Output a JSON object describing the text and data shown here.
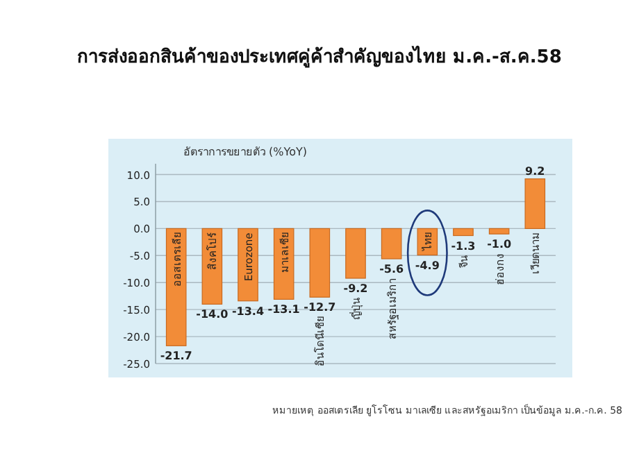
{
  "chart_data": {
    "type": "bar",
    "title": "การส่งออกสินค้าของประเทศคู่ค้าสำคัญของไทย ม.ค.-ส.ค.58",
    "subtitle": "อัตราการขยายตัว (%YoY)",
    "categories": [
      "ออสเตรเลีย",
      "สิงคโปร์",
      "Eurozone",
      "มาเลเซีย",
      "อินโดนีเซีย",
      "ญี่ปุ่น",
      "สหรัฐอเมริกา",
      "ไทย",
      "จีน",
      "ฮ่องกง",
      "เวียดนาม"
    ],
    "values": [
      -21.7,
      -14.0,
      -13.4,
      -13.1,
      -12.7,
      -9.2,
      -5.6,
      -4.9,
      -1.3,
      -1.0,
      9.2
    ],
    "value_labels": [
      "-21.7",
      "-14.0",
      "-13.4",
      "-13.1",
      "-12.7",
      "-9.2",
      "-5.6",
      "-4.9",
      "-1.3",
      "-1.0",
      "9.2"
    ],
    "color": "#f28c38",
    "ylim": [
      -25,
      12
    ],
    "yticks": [
      {
        "value": 10,
        "label": "10.0"
      },
      {
        "value": 5,
        "label": "5.0"
      },
      {
        "value": 0,
        "label": "0.0"
      },
      {
        "value": -5,
        "label": "-5.0"
      },
      {
        "value": -10,
        "label": "-10.0"
      },
      {
        "value": -15,
        "label": "-15.0"
      },
      {
        "value": -20,
        "label": "-20.0"
      },
      {
        "value": -25,
        "label": "-25.0"
      }
    ],
    "grid": "y",
    "annotations": [
      "หมายเหตุ ออสเตรเลีย ยูโรโซน มาเลเซีย และสหรัฐอเมริกา เป็นข้อมูล ม.ค.-ก.ค. 58"
    ]
  }
}
